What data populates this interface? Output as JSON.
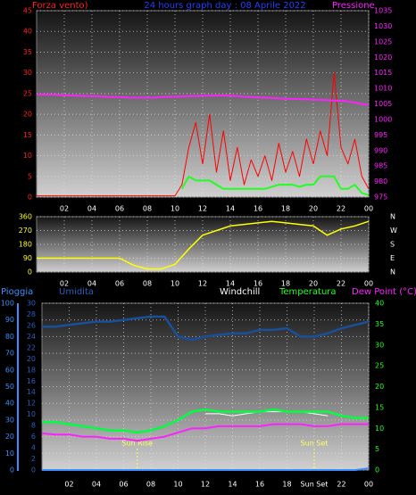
{
  "chart_data": [
    {
      "type": "line",
      "title": "24 hours graph day : 08 Aprile 2022",
      "xlim": [
        0,
        24
      ],
      "xticks": [
        {
          "value": 2,
          "label": "02"
        },
        {
          "value": 4,
          "label": "04"
        },
        {
          "value": 6,
          "label": "06"
        },
        {
          "value": 8,
          "label": "08"
        },
        10,
        12,
        14,
        16,
        18,
        20,
        22,
        {
          "value": 24,
          "label": "00"
        }
      ],
      "ylim": [
        0,
        45
      ],
      "yticks": [
        0,
        5,
        10,
        15,
        20,
        25,
        30,
        35,
        40,
        45
      ],
      "ycolor": "#ff2020",
      "y2lim": [
        975,
        1035
      ],
      "y2ticks": [
        975,
        980,
        985,
        990,
        995,
        1000,
        1005,
        1010,
        1015,
        1020,
        1025,
        1030,
        1035
      ],
      "y2color": "#ff20ff",
      "grid": true,
      "x": [
        0,
        0.5,
        1,
        1.5,
        2,
        2.5,
        3,
        3.5,
        4,
        4.5,
        5,
        5.5,
        6,
        6.5,
        7,
        7.5,
        8,
        8.5,
        9,
        9.5,
        10,
        10.5,
        11,
        11.5,
        12,
        12.5,
        13,
        13.5,
        14,
        14.5,
        15,
        15.5,
        16,
        16.5,
        17,
        17.5,
        18,
        18.5,
        19,
        19.5,
        20,
        20.5,
        21,
        21.5,
        22,
        22.5,
        23,
        23.5,
        24
      ],
      "series": [
        {
          "name": "Forza vento)",
          "color": "#ff0000",
          "width": 1,
          "values": [
            0.3,
            0.3,
            0.3,
            0.3,
            0.3,
            0.3,
            0.3,
            0.3,
            0.3,
            0.3,
            0.3,
            0.3,
            0.3,
            0.3,
            0.3,
            0.3,
            0.3,
            0.3,
            0.3,
            0.3,
            0.3,
            3,
            12,
            18,
            8,
            20,
            6,
            16,
            4,
            12,
            3,
            9,
            5,
            10,
            4,
            13,
            6,
            11,
            5,
            14,
            8,
            16,
            10,
            30,
            12,
            8,
            14,
            5,
            2
          ]
        },
        {
          "color": "#20ff20",
          "width": 2,
          "values": [
            null,
            null,
            null,
            null,
            null,
            null,
            null,
            null,
            null,
            null,
            null,
            null,
            null,
            null,
            null,
            null,
            null,
            null,
            null,
            null,
            null,
            2,
            5,
            4,
            4,
            4,
            3,
            2,
            2,
            2,
            2,
            2,
            2,
            2,
            2.5,
            3,
            3,
            3,
            2.5,
            3,
            3,
            5,
            5,
            5,
            2,
            2,
            3,
            1,
            0.5
          ]
        },
        {
          "name": "Pressione",
          "color": "#ff20ff",
          "width": 2,
          "axis": "y2",
          "values": [
            1008,
            1008,
            1008,
            1007.9,
            1007.8,
            1007.7,
            1007.6,
            1007.5,
            1007.5,
            1007.4,
            1007.3,
            1007.2,
            1007.2,
            1007.1,
            1007,
            1007,
            1007,
            1007,
            1007.2,
            1007.3,
            1007.3,
            1007.4,
            1007.5,
            1007.5,
            1007.6,
            1007.6,
            1007.7,
            1007.7,
            1007.6,
            1007.5,
            1007.3,
            1007.2,
            1007.1,
            1007,
            1006.9,
            1006.8,
            1006.7,
            1006.6,
            1006.5,
            1006.5,
            1006.4,
            1006.3,
            1006.2,
            1006.1,
            1006,
            1005.8,
            1005.4,
            1005,
            1004.6
          ]
        }
      ]
    },
    {
      "type": "line",
      "xlim": [
        0,
        24
      ],
      "xticks": [
        {
          "value": 2,
          "label": "02"
        },
        {
          "value": 4,
          "label": "04"
        },
        {
          "value": 6,
          "label": "06"
        },
        {
          "value": 8,
          "label": "08"
        },
        10,
        12,
        14,
        16,
        18,
        20,
        22,
        {
          "value": 24,
          "label": "00"
        }
      ],
      "ylim": [
        0,
        360
      ],
      "yticks": [
        0,
        90,
        180,
        270,
        360
      ],
      "ycolor": "#ffff20",
      "y2lim": [
        0,
        360
      ],
      "y2ticks": [
        {
          "value": 0,
          "label": "N"
        },
        {
          "value": 90,
          "label": "E"
        },
        {
          "value": 180,
          "label": "S"
        },
        {
          "value": 270,
          "label": "W"
        },
        {
          "value": 360,
          "label": "N"
        }
      ],
      "y2color": "#ffffff",
      "grid": true,
      "x": [
        0,
        1,
        2,
        3,
        4,
        5,
        6,
        7,
        8,
        9,
        10,
        11,
        12,
        13,
        14,
        15,
        16,
        17,
        18,
        19,
        20,
        21,
        22,
        23,
        24
      ],
      "series": [
        {
          "color": "#ffff00",
          "width": 1.5,
          "values": [
            90,
            90,
            90,
            90,
            90,
            90,
            90,
            45,
            20,
            20,
            50,
            150,
            240,
            270,
            300,
            310,
            320,
            330,
            320,
            310,
            300,
            240,
            280,
            300,
            330
          ]
        }
      ]
    },
    {
      "type": "line",
      "xlim": [
        0,
        24
      ],
      "xticks": [
        {
          "value": 2,
          "label": "02"
        },
        {
          "value": 4,
          "label": "04"
        },
        {
          "value": 6,
          "label": "06"
        },
        {
          "value": 8,
          "label": "08"
        },
        10,
        12,
        14,
        16,
        18,
        {
          "value": 20,
          "label": "Sun Set"
        },
        22,
        {
          "value": 24,
          "label": "00"
        }
      ],
      "ylim": [
        0,
        100
      ],
      "yticks": [
        0,
        10,
        20,
        30,
        40,
        50,
        60,
        70,
        80,
        90,
        100
      ],
      "ycolor": "#3a8fff",
      "y3lim": [
        0,
        30
      ],
      "y3ticks": [
        0,
        2,
        4,
        6,
        8,
        10,
        12,
        14,
        16,
        18,
        20,
        22,
        24,
        26,
        28,
        30
      ],
      "y3color": "#2a5fc0",
      "y2lim": [
        0,
        40
      ],
      "y2ticks": [
        0,
        5,
        10,
        15,
        20,
        25,
        30,
        35,
        40
      ],
      "y2color": "#20ff20",
      "grid": true,
      "annotations": [
        {
          "x": 7,
          "label": "Sun Rise"
        },
        {
          "x": 20,
          "label": "Sun Set"
        }
      ],
      "x": [
        0,
        1,
        2,
        3,
        4,
        5,
        6,
        7,
        8,
        9,
        10,
        11,
        12,
        13,
        14,
        15,
        16,
        17,
        18,
        19,
        20,
        21,
        22,
        23,
        24
      ],
      "series": [
        {
          "name": "Pioggia",
          "color": "#3a8fff",
          "width": 2,
          "values": [
            0,
            0,
            0,
            0,
            0,
            0,
            0,
            0,
            0,
            0,
            0,
            0,
            0,
            0,
            0,
            0,
            0,
            0,
            0,
            0,
            0,
            0,
            0,
            0,
            1
          ]
        },
        {
          "name": "Umidita",
          "color": "#1a4f9a",
          "width": 2.5,
          "values": [
            86,
            86,
            87,
            88,
            89,
            89,
            90,
            91,
            92,
            92,
            80,
            78,
            80,
            81,
            82,
            82,
            84,
            84,
            85,
            80,
            80,
            82,
            85,
            87,
            89
          ]
        },
        {
          "name": "Windchill",
          "color": "#ffffff",
          "width": 1,
          "axis": "y2",
          "values": [
            null,
            null,
            null,
            null,
            null,
            null,
            null,
            null,
            null,
            null,
            null,
            null,
            13.5,
            13.5,
            13,
            13.5,
            14,
            14,
            14,
            14,
            13.5,
            13,
            null,
            null,
            null
          ]
        },
        {
          "name": "Temperatura",
          "color": "#00ff40",
          "width": 2.5,
          "axis": "y2",
          "values": [
            11.5,
            11.5,
            11,
            10.5,
            10,
            9.5,
            9.5,
            9,
            9.5,
            10.5,
            12,
            14,
            14.5,
            14,
            14,
            14,
            14,
            14.5,
            14,
            14,
            14,
            14,
            13,
            12.5,
            12.5
          ]
        },
        {
          "name": "Dew Point (°C)",
          "color": "#ff20ff",
          "width": 2,
          "axis": "y2",
          "values": [
            8.8,
            8.5,
            8.5,
            8,
            8,
            7.5,
            7.5,
            7,
            7.5,
            8,
            9,
            10,
            10,
            10.5,
            10.5,
            10.5,
            10.5,
            11,
            11,
            11,
            10.5,
            10.5,
            11,
            11,
            11
          ]
        }
      ]
    }
  ]
}
